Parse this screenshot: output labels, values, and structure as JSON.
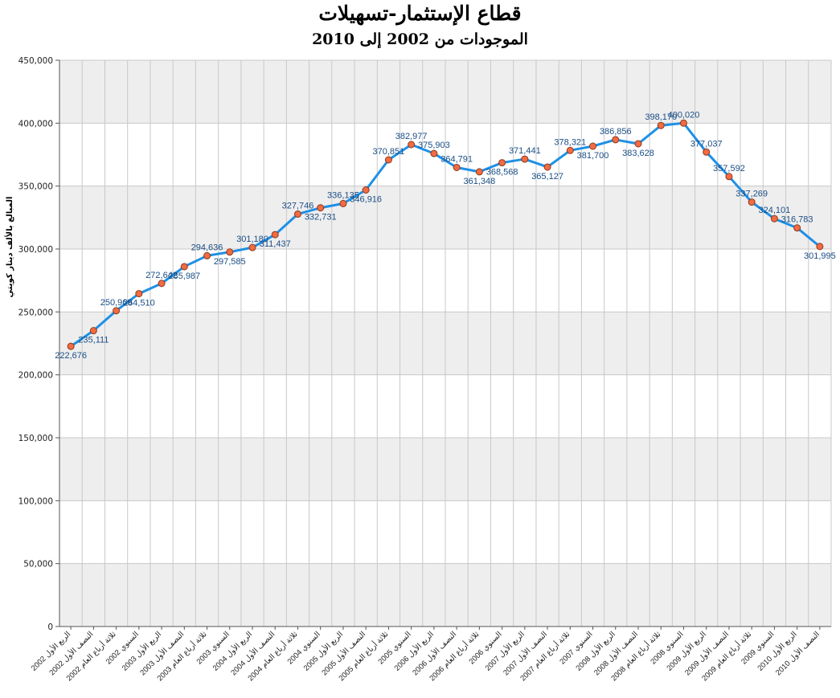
{
  "chart_data": {
    "type": "line",
    "title": "قطاع الإستثمار-تسهيلات",
    "subtitle": "الموجودات من 2002 إلى 2010",
    "ylabel": "المبالغ بالألف دينار كويتي",
    "xlabel": "",
    "ylim": [
      0,
      450000
    ],
    "yticks": [
      "0",
      "50,000",
      "100,000",
      "150,000",
      "200,000",
      "250,000",
      "300,000",
      "350,000",
      "400,000",
      "450,000"
    ],
    "grid": true,
    "legend": "none",
    "categories": [
      "الربع الأول 2002",
      "النصف الأول 2002",
      "ثلاثة أرباع العام 2002",
      "السنوي 2002",
      "الربع الأول 2003",
      "النصف الأول 2003",
      "ثلاثة أرباع العام 2003",
      "السنوي 2003",
      "الربع الأول 2004",
      "النصف الأول 2004",
      "ثلاثة أرباع العام 2004",
      "السنوي 2004",
      "الربع الأول 2005",
      "النصف الأول 2005",
      "ثلاثة أرباع العام 2005",
      "السنوي 2005",
      "الربع الأول 2006",
      "النصف الأول 2006",
      "ثلاثة أرباع العام 2006",
      "السنوي 2006",
      "الربع الأول 2007",
      "النصف الأول 2007",
      "ثلاثة أرباع العام 2007",
      "السنوي 2007",
      "الربع الأول 2008",
      "النصف الأول 2008",
      "ثلاثة أرباع العام 2008",
      "السنوي 2008",
      "الربع الأول 2009",
      "النصف الأول 2009",
      "ثلاثة أرباع العام 2009",
      "السنوي 2009",
      "الربع الأول 2010",
      "النصف الأول 2010"
    ],
    "series": [
      {
        "values": [
          222676,
          235111,
          250969,
          264510,
          272642,
          285987,
          294636,
          297585,
          301180,
          311437,
          327746,
          332731,
          336135,
          346916,
          370851,
          382977,
          375903,
          364791,
          361348,
          368568,
          371441,
          365127,
          378321,
          381700,
          386856,
          383628,
          398170,
          400020,
          377037,
          357592,
          337269,
          324101,
          316783,
          301995
        ],
        "data_labels": [
          "222,676",
          "235,111",
          "250,969",
          "264,510",
          "272,642",
          "285,987",
          "294,636",
          "297,585",
          "301,180",
          "311,437",
          "327,746",
          "332,731",
          "336,135",
          "346,916",
          "370,851",
          "382,977",
          "375,903",
          "364,791",
          "361,348",
          "368,568",
          "371,441",
          "365,127",
          "378,321",
          "381,700",
          "386,856",
          "383,628",
          "398,170",
          "400,020",
          "377,037",
          "357,592",
          "337,269",
          "324,101",
          "316,783",
          "301,995"
        ],
        "line_color": "#1e90e6",
        "marker_color": "#f26b43",
        "marker_edge_color": "#8a3a1c",
        "label_color": "#1a4e86"
      }
    ],
    "band_color": "#eeeeee",
    "grid_color": "#c8c8c8"
  }
}
